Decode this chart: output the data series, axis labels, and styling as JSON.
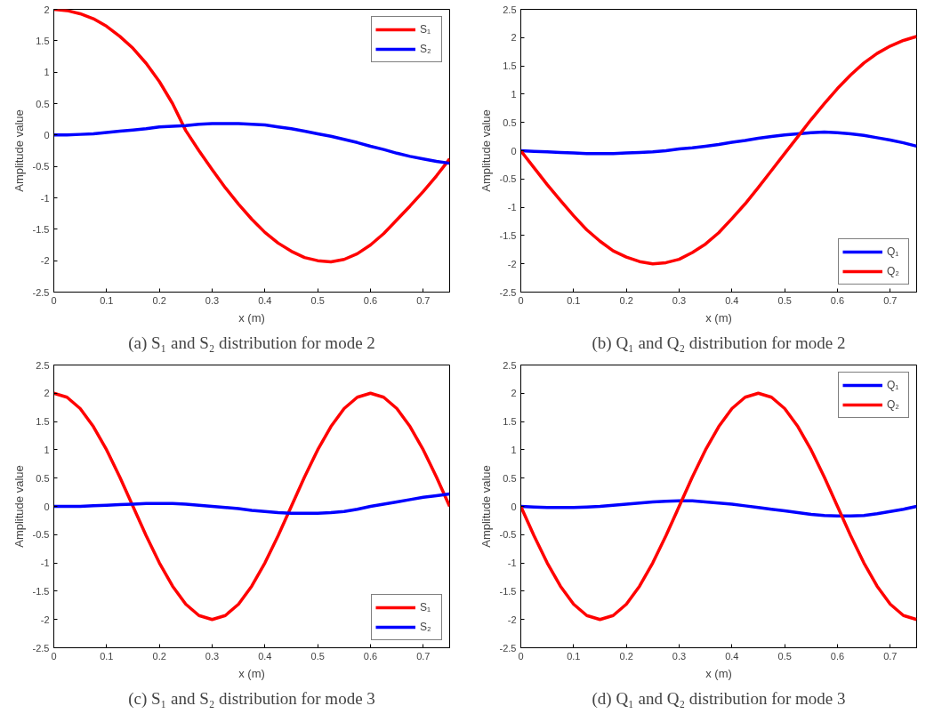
{
  "chart_data": [
    {
      "type": "line",
      "title": "(a) S₁ and S₂ distribution for mode 2",
      "xlabel": "x (m)",
      "ylabel": "Amplitude value",
      "xlim": [
        0,
        0.75
      ],
      "ylim": [
        -2.5,
        2
      ],
      "xticks": [
        0,
        0.1,
        0.2,
        0.3,
        0.4,
        0.5,
        0.6,
        0.7
      ],
      "yticks": [
        -2.5,
        -2,
        -1.5,
        -1,
        -0.5,
        0,
        0.5,
        1,
        1.5,
        2
      ],
      "grid": false,
      "legend": "top right",
      "marker": "none",
      "line_style": "solid",
      "x": [
        0,
        0.025,
        0.05,
        0.075,
        0.1,
        0.125,
        0.15,
        0.175,
        0.2,
        0.225,
        0.25,
        0.275,
        0.3,
        0.325,
        0.35,
        0.375,
        0.4,
        0.425,
        0.45,
        0.475,
        0.5,
        0.525,
        0.55,
        0.575,
        0.6,
        0.625,
        0.65,
        0.675,
        0.7,
        0.725,
        0.75
      ],
      "series": [
        {
          "name": "S₁",
          "color": "#ff0000",
          "values": [
            2.0,
            1.98,
            1.93,
            1.85,
            1.73,
            1.57,
            1.38,
            1.14,
            0.85,
            0.5,
            0.07,
            -0.25,
            -0.55,
            -0.84,
            -1.1,
            -1.34,
            -1.55,
            -1.72,
            -1.85,
            -1.95,
            -2.0,
            -2.02,
            -1.98,
            -1.89,
            -1.75,
            -1.57,
            -1.35,
            -1.13,
            -0.9,
            -0.65,
            -0.38
          ]
        },
        {
          "name": "S₂",
          "color": "#0000ff",
          "values": [
            0,
            0,
            0.01,
            0.02,
            0.04,
            0.06,
            0.08,
            0.1,
            0.13,
            0.14,
            0.15,
            0.17,
            0.18,
            0.18,
            0.18,
            0.17,
            0.16,
            0.13,
            0.1,
            0.06,
            0.02,
            -0.02,
            -0.07,
            -0.12,
            -0.18,
            -0.23,
            -0.29,
            -0.34,
            -0.38,
            -0.42,
            -0.45
          ]
        }
      ]
    },
    {
      "type": "line",
      "title": "(b) Q₁ and Q₂ distribution for mode 2",
      "xlabel": "x (m)",
      "ylabel": "Amplitude value",
      "xlim": [
        0,
        0.75
      ],
      "ylim": [
        -2.5,
        2.5
      ],
      "xticks": [
        0,
        0.1,
        0.2,
        0.3,
        0.4,
        0.5,
        0.6,
        0.7
      ],
      "yticks": [
        -2.5,
        -2,
        -1.5,
        -1,
        -0.5,
        0,
        0.5,
        1,
        1.5,
        2,
        2.5
      ],
      "grid": false,
      "legend": "bottom right",
      "marker": "none",
      "line_style": "solid",
      "x": [
        0,
        0.025,
        0.05,
        0.075,
        0.1,
        0.125,
        0.15,
        0.175,
        0.2,
        0.225,
        0.25,
        0.275,
        0.3,
        0.325,
        0.35,
        0.375,
        0.4,
        0.425,
        0.45,
        0.475,
        0.5,
        0.525,
        0.55,
        0.575,
        0.6,
        0.625,
        0.65,
        0.675,
        0.7,
        0.725,
        0.75
      ],
      "series": [
        {
          "name": "Q₁",
          "color": "#0000ff",
          "values": [
            0,
            -0.01,
            -0.02,
            -0.03,
            -0.04,
            -0.05,
            -0.05,
            -0.05,
            -0.04,
            -0.03,
            -0.02,
            0.0,
            0.03,
            0.05,
            0.08,
            0.11,
            0.15,
            0.18,
            0.22,
            0.25,
            0.28,
            0.3,
            0.32,
            0.33,
            0.32,
            0.3,
            0.27,
            0.23,
            0.19,
            0.14,
            0.08
          ]
        },
        {
          "name": "Q₂",
          "color": "#ff0000",
          "values": [
            0,
            -0.3,
            -0.6,
            -0.88,
            -1.15,
            -1.4,
            -1.6,
            -1.77,
            -1.88,
            -1.96,
            -2.0,
            -1.98,
            -1.92,
            -1.8,
            -1.65,
            -1.45,
            -1.2,
            -0.94,
            -0.65,
            -0.35,
            -0.05,
            0.25,
            0.55,
            0.83,
            1.1,
            1.34,
            1.55,
            1.72,
            1.85,
            1.95,
            2.02
          ]
        }
      ]
    },
    {
      "type": "line",
      "title": "(c) S₁ and S₂ distribution for mode 3",
      "xlabel": "x (m)",
      "ylabel": "Amplitude value",
      "xlim": [
        0,
        0.75
      ],
      "ylim": [
        -2.5,
        2.5
      ],
      "xticks": [
        0,
        0.1,
        0.2,
        0.3,
        0.4,
        0.5,
        0.6,
        0.7
      ],
      "yticks": [
        -2.5,
        -2,
        -1.5,
        -1,
        -0.5,
        0,
        0.5,
        1,
        1.5,
        2,
        2.5
      ],
      "grid": false,
      "legend": "bottom right",
      "marker": "none",
      "line_style": "solid",
      "x": [
        0,
        0.025,
        0.05,
        0.075,
        0.1,
        0.125,
        0.15,
        0.175,
        0.2,
        0.225,
        0.25,
        0.275,
        0.3,
        0.325,
        0.35,
        0.375,
        0.4,
        0.425,
        0.45,
        0.475,
        0.5,
        0.525,
        0.55,
        0.575,
        0.6,
        0.625,
        0.65,
        0.675,
        0.7,
        0.725,
        0.75
      ],
      "series": [
        {
          "name": "S₁",
          "color": "#ff0000",
          "values": [
            2,
            1.93,
            1.73,
            1.41,
            1.0,
            0.52,
            0,
            -0.52,
            -1.0,
            -1.41,
            -1.73,
            -1.93,
            -2,
            -1.93,
            -1.73,
            -1.41,
            -1.0,
            -0.52,
            0,
            0.52,
            1.0,
            1.41,
            1.73,
            1.93,
            2,
            1.93,
            1.73,
            1.41,
            1.0,
            0.52,
            0
          ]
        },
        {
          "name": "S₂",
          "color": "#0000ff",
          "values": [
            0,
            0,
            0,
            0.01,
            0.02,
            0.03,
            0.04,
            0.05,
            0.05,
            0.05,
            0.04,
            0.02,
            0.0,
            -0.02,
            -0.04,
            -0.07,
            -0.09,
            -0.11,
            -0.12,
            -0.12,
            -0.12,
            -0.11,
            -0.09,
            -0.05,
            0.0,
            0.04,
            0.08,
            0.12,
            0.16,
            0.19,
            0.22
          ]
        }
      ]
    },
    {
      "type": "line",
      "title": "(d) Q₁ and Q₂ distribution for mode 3",
      "xlabel": "x (m)",
      "ylabel": "Amplitude value",
      "xlim": [
        0,
        0.75
      ],
      "ylim": [
        -2.5,
        2.5
      ],
      "xticks": [
        0,
        0.1,
        0.2,
        0.3,
        0.4,
        0.5,
        0.6,
        0.7
      ],
      "yticks": [
        -2.5,
        -2,
        -1.5,
        -1,
        -0.5,
        0,
        0.5,
        1,
        1.5,
        2,
        2.5
      ],
      "grid": false,
      "legend": "top right",
      "marker": "none",
      "line_style": "solid",
      "x": [
        0,
        0.025,
        0.05,
        0.075,
        0.1,
        0.125,
        0.15,
        0.175,
        0.2,
        0.225,
        0.25,
        0.275,
        0.3,
        0.325,
        0.35,
        0.375,
        0.4,
        0.425,
        0.45,
        0.475,
        0.5,
        0.525,
        0.55,
        0.575,
        0.6,
        0.625,
        0.65,
        0.675,
        0.7,
        0.725,
        0.75
      ],
      "series": [
        {
          "name": "Q₁",
          "color": "#0000ff",
          "values": [
            0,
            -0.01,
            -0.02,
            -0.02,
            -0.02,
            -0.01,
            0.0,
            0.02,
            0.04,
            0.06,
            0.08,
            0.09,
            0.1,
            0.1,
            0.08,
            0.06,
            0.04,
            0.01,
            -0.02,
            -0.05,
            -0.08,
            -0.11,
            -0.14,
            -0.16,
            -0.17,
            -0.17,
            -0.16,
            -0.13,
            -0.09,
            -0.05,
            0.0
          ]
        },
        {
          "name": "Q₂",
          "color": "#ff0000",
          "values": [
            0,
            -0.52,
            -1.0,
            -1.41,
            -1.73,
            -1.93,
            -2,
            -1.93,
            -1.73,
            -1.41,
            -1.0,
            -0.52,
            0,
            0.52,
            1.0,
            1.41,
            1.73,
            1.93,
            2,
            1.93,
            1.73,
            1.41,
            1.0,
            0.52,
            0,
            -0.52,
            -1.0,
            -1.41,
            -1.73,
            -1.93,
            -2
          ]
        }
      ]
    }
  ]
}
